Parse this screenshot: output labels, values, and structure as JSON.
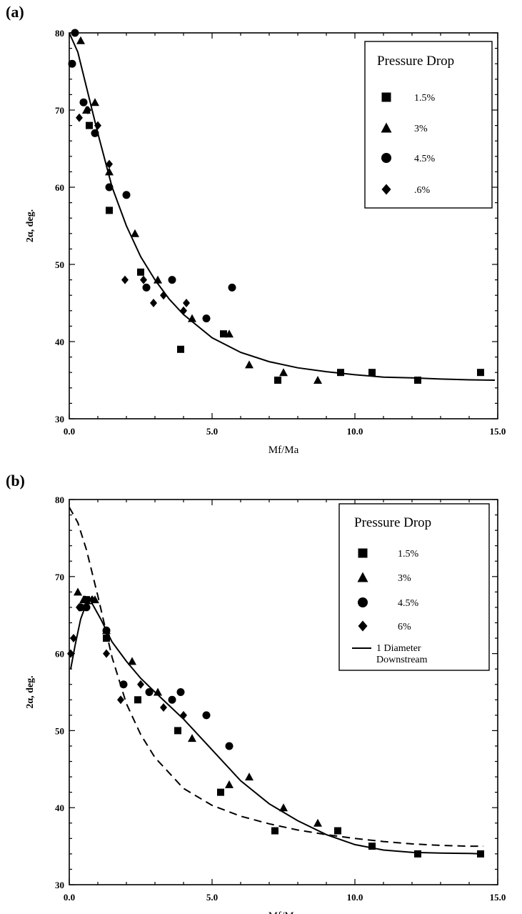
{
  "chart_data": [
    {
      "panel_label": "(a)",
      "type": "scatter",
      "xlabel": "Mf/Ma",
      "ylabel": "2α, deg.",
      "xlim": [
        0,
        15
      ],
      "ylim": [
        30,
        80
      ],
      "x_ticks": [
        "0.0",
        "5.0",
        "10.0",
        "15.0"
      ],
      "y_ticks": [
        "30",
        "40",
        "50",
        "60",
        "70",
        "80"
      ],
      "grid": false,
      "legend": {
        "title": "Pressure Drop",
        "placement": "top-right"
      },
      "series": [
        {
          "name": "1.5%",
          "marker": "square",
          "points": [
            [
              0.7,
              68
            ],
            [
              1.4,
              57
            ],
            [
              2.5,
              49
            ],
            [
              3.9,
              39
            ],
            [
              5.4,
              41
            ],
            [
              7.3,
              35
            ],
            [
              9.5,
              36
            ],
            [
              10.6,
              36
            ],
            [
              12.2,
              35
            ],
            [
              14.4,
              36
            ]
          ]
        },
        {
          "name": "3%",
          "marker": "triangle",
          "points": [
            [
              0.4,
              79
            ],
            [
              0.6,
              70
            ],
            [
              0.9,
              71
            ],
            [
              1.4,
              62
            ],
            [
              2.3,
              54
            ],
            [
              3.1,
              48
            ],
            [
              4.3,
              43
            ],
            [
              5.6,
              41
            ],
            [
              6.3,
              37
            ],
            [
              7.5,
              36
            ],
            [
              8.7,
              35
            ]
          ]
        },
        {
          "name": "4.5%",
          "marker": "circle",
          "points": [
            [
              0.1,
              76
            ],
            [
              0.2,
              80
            ],
            [
              0.5,
              71
            ],
            [
              0.9,
              67
            ],
            [
              1.4,
              60
            ],
            [
              2.0,
              59
            ],
            [
              2.7,
              47
            ],
            [
              3.6,
              48
            ],
            [
              4.8,
              43
            ],
            [
              5.7,
              47
            ]
          ]
        },
        {
          "name": ".6%",
          "marker": "diamond",
          "points": [
            [
              0.35,
              69
            ],
            [
              0.65,
              70
            ],
            [
              1.0,
              68
            ],
            [
              1.4,
              63
            ],
            [
              1.95,
              48
            ],
            [
              2.6,
              48
            ],
            [
              2.95,
              45
            ],
            [
              3.3,
              46
            ],
            [
              4.0,
              44
            ],
            [
              4.1,
              45
            ]
          ]
        }
      ],
      "curves": [
        {
          "style": "solid",
          "points": [
            [
              0,
              80
            ],
            [
              0.3,
              77.5
            ],
            [
              0.6,
              73
            ],
            [
              1.0,
              67
            ],
            [
              1.5,
              60
            ],
            [
              2.0,
              55
            ],
            [
              2.5,
              51
            ],
            [
              3.0,
              48
            ],
            [
              3.5,
              45.5
            ],
            [
              4.0,
              43.5
            ],
            [
              5.0,
              40.5
            ],
            [
              6.0,
              38.6
            ],
            [
              7.0,
              37.4
            ],
            [
              8.0,
              36.6
            ],
            [
              9.0,
              36.1
            ],
            [
              10.0,
              35.7
            ],
            [
              11.0,
              35.4
            ],
            [
              12.0,
              35.3
            ],
            [
              13.0,
              35.15
            ],
            [
              14.0,
              35.05
            ],
            [
              14.9,
              35.0
            ]
          ]
        }
      ]
    },
    {
      "panel_label": "(b)",
      "type": "scatter",
      "xlabel": "Mf/Ma",
      "ylabel": "2α, deg.",
      "xlim": [
        0,
        15
      ],
      "ylim": [
        30,
        80
      ],
      "x_ticks": [
        "0.0",
        "5.0",
        "10.0",
        "15.0"
      ],
      "y_ticks": [
        "30",
        "40",
        "50",
        "60",
        "70",
        "80"
      ],
      "grid": false,
      "legend": {
        "title": "Pressure Drop",
        "placement": "top-right",
        "line_label": "1 Diameter Downstream"
      },
      "series": [
        {
          "name": "1.5%",
          "marker": "square",
          "points": [
            [
              0.6,
              67
            ],
            [
              1.3,
              62
            ],
            [
              2.4,
              54
            ],
            [
              3.8,
              50
            ],
            [
              5.3,
              42
            ],
            [
              7.2,
              37
            ],
            [
              9.4,
              37
            ],
            [
              10.6,
              35
            ],
            [
              12.2,
              34
            ],
            [
              14.4,
              34
            ]
          ]
        },
        {
          "name": "3%",
          "marker": "triangle",
          "points": [
            [
              0.3,
              68
            ],
            [
              0.5,
              67
            ],
            [
              0.9,
              67
            ],
            [
              1.3,
              63
            ],
            [
              2.2,
              59
            ],
            [
              3.1,
              55
            ],
            [
              4.3,
              49
            ],
            [
              5.6,
              43
            ],
            [
              6.3,
              44
            ],
            [
              7.5,
              40
            ],
            [
              8.7,
              38
            ]
          ]
        },
        {
          "name": "4.5%",
          "marker": "circle",
          "points": [
            [
              0.4,
              66
            ],
            [
              0.6,
              66
            ],
            [
              1.3,
              63
            ],
            [
              1.9,
              56
            ],
            [
              2.8,
              55
            ],
            [
              3.6,
              54
            ],
            [
              3.9,
              55
            ],
            [
              4.8,
              52
            ],
            [
              5.6,
              48
            ]
          ]
        },
        {
          "name": "6%",
          "marker": "diamond",
          "points": [
            [
              0.05,
              60
            ],
            [
              0.15,
              62
            ],
            [
              0.35,
              66
            ],
            [
              0.55,
              67
            ],
            [
              0.8,
              67
            ],
            [
              1.3,
              60
            ],
            [
              1.8,
              54
            ],
            [
              2.5,
              56
            ],
            [
              3.3,
              53
            ],
            [
              4.0,
              52
            ]
          ]
        }
      ],
      "curves": [
        {
          "style": "solid",
          "points": [
            [
              0.05,
              58
            ],
            [
              0.2,
              61
            ],
            [
              0.4,
              64.5
            ],
            [
              0.6,
              66.5
            ],
            [
              0.8,
              66.5
            ],
            [
              1.1,
              64.5
            ],
            [
              1.5,
              61.5
            ],
            [
              2.0,
              59
            ],
            [
              2.5,
              56.8
            ],
            [
              3.0,
              55
            ],
            [
              4.0,
              51.5
            ],
            [
              5.0,
              47.5
            ],
            [
              6.0,
              43.5
            ],
            [
              7.0,
              40.5
            ],
            [
              8.0,
              38.3
            ],
            [
              9.0,
              36.5
            ],
            [
              10.0,
              35.2
            ],
            [
              11.0,
              34.5
            ],
            [
              12.0,
              34.2
            ],
            [
              13.0,
              34.1
            ],
            [
              14.0,
              34.05
            ],
            [
              14.5,
              34.0
            ]
          ]
        },
        {
          "style": "dashed",
          "points": [
            [
              0.0,
              79
            ],
            [
              0.3,
              77
            ],
            [
              0.6,
              73.5
            ],
            [
              1.0,
              67.5
            ],
            [
              1.5,
              59.5
            ],
            [
              2.0,
              53.5
            ],
            [
              2.5,
              49.5
            ],
            [
              3.0,
              46.5
            ],
            [
              4.0,
              42.5
            ],
            [
              5.0,
              40.3
            ],
            [
              6.0,
              38.9
            ],
            [
              7.0,
              37.9
            ],
            [
              8.0,
              37.1
            ],
            [
              9.0,
              36.5
            ],
            [
              10.0,
              36.0
            ],
            [
              11.0,
              35.6
            ],
            [
              12.0,
              35.3
            ],
            [
              13.0,
              35.1
            ],
            [
              14.0,
              35.0
            ],
            [
              14.5,
              35.0
            ]
          ]
        }
      ]
    }
  ]
}
